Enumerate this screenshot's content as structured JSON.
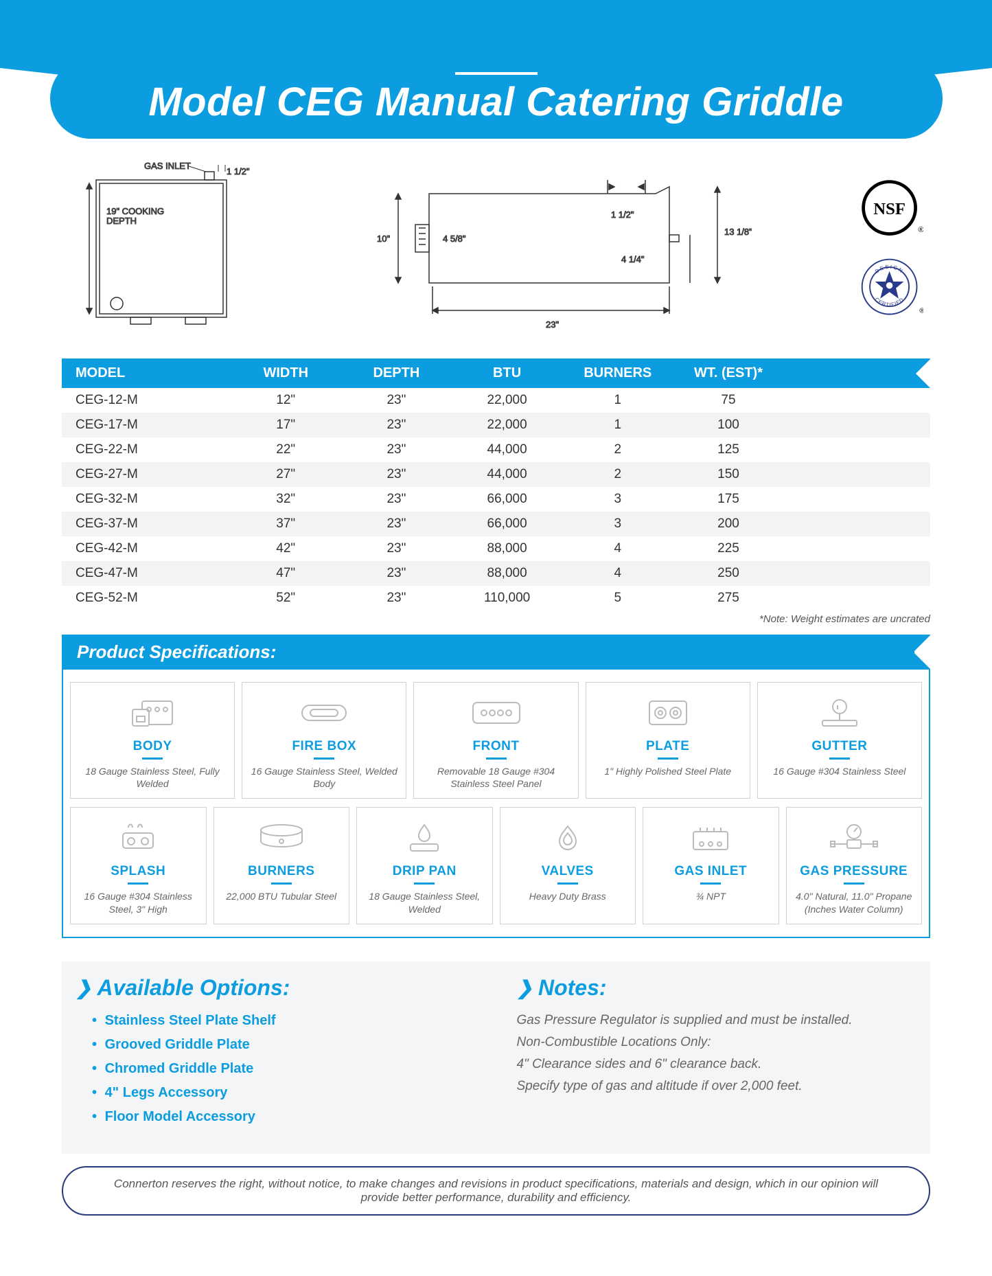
{
  "title": "Model CEG Manual Catering Griddle",
  "colors": {
    "accent": "#0c9de0",
    "dark": "#3a4270",
    "text": "#333333",
    "muted": "#666666"
  },
  "diagram": {
    "top": {
      "gas_inlet_label": "GAS INLET",
      "inlet_dim": "1 1/2\"",
      "cooking_depth": "19\" COOKING\nDEPTH"
    },
    "side": {
      "height": "10\"",
      "shelf": "4 5/8\"",
      "lip": "1 1/2\"",
      "back_h": "13 1/8\"",
      "back_lip": "4 1/4\"",
      "depth": "23\""
    }
  },
  "cert_labels": {
    "nsf": "NSF",
    "csa_top": "DESIGN",
    "csa_bottom": "CERTIFIED"
  },
  "table": {
    "headers": [
      "MODEL",
      "WIDTH",
      "DEPTH",
      "BTU",
      "BURNERS",
      "WT. (EST)*"
    ],
    "rows": [
      [
        "CEG-12-M",
        "12\"",
        "23\"",
        "22,000",
        "1",
        "75"
      ],
      [
        "CEG-17-M",
        "17\"",
        "23\"",
        "22,000",
        "1",
        "100"
      ],
      [
        "CEG-22-M",
        "22\"",
        "23\"",
        "44,000",
        "2",
        "125"
      ],
      [
        "CEG-27-M",
        "27\"",
        "23\"",
        "44,000",
        "2",
        "150"
      ],
      [
        "CEG-32-M",
        "32\"",
        "23\"",
        "66,000",
        "3",
        "175"
      ],
      [
        "CEG-37-M",
        "37\"",
        "23\"",
        "66,000",
        "3",
        "200"
      ],
      [
        "CEG-42-M",
        "42\"",
        "23\"",
        "88,000",
        "4",
        "225"
      ],
      [
        "CEG-47-M",
        "47\"",
        "23\"",
        "88,000",
        "4",
        "250"
      ],
      [
        "CEG-52-M",
        "52\"",
        "23\"",
        "110,000",
        "5",
        "275"
      ]
    ],
    "footnote": "*Note: Weight estimates are uncrated"
  },
  "specs_heading": "Product Specifications:",
  "specs_row1": [
    {
      "title": "BODY",
      "desc": "18 Gauge Stainless Steel, Fully Welded"
    },
    {
      "title": "FIRE BOX",
      "desc": "16 Gauge Stainless Steel, Welded Body"
    },
    {
      "title": "FRONT",
      "desc": "Removable 18 Gauge #304 Stainless Steel Panel"
    },
    {
      "title": "PLATE",
      "desc": "1\" Highly Polished Steel Plate"
    },
    {
      "title": "GUTTER",
      "desc": "16 Gauge #304 Stainless Steel"
    }
  ],
  "specs_row2": [
    {
      "title": "SPLASH",
      "desc": "16 Gauge #304 Stainless Steel, 3\" High"
    },
    {
      "title": "BURNERS",
      "desc": "22,000 BTU Tubular Steel"
    },
    {
      "title": "DRIP PAN",
      "desc": "18 Gauge Stainless Steel, Welded"
    },
    {
      "title": "VALVES",
      "desc": "Heavy Duty Brass"
    },
    {
      "title": "GAS INLET",
      "desc": "¾ NPT"
    },
    {
      "title": "GAS PRESSURE",
      "desc": "4.0\" Natural, 11.0\" Propane (Inches Water Column)"
    }
  ],
  "options": {
    "heading": "Available Options:",
    "items": [
      "Stainless Steel Plate Shelf",
      "Grooved Griddle Plate",
      "Chromed Griddle Plate",
      "4\" Legs Accessory",
      "Floor Model Accessory"
    ]
  },
  "notes": {
    "heading": "Notes:",
    "items": [
      "Gas Pressure Regulator is supplied and must be installed.",
      "Non-Combustible Locations Only:",
      "4\" Clearance sides and 6\" clearance back.",
      "Specify type of gas and altitude if over 2,000 feet."
    ]
  },
  "disclaimer": "Connerton reserves the right, without notice, to make changes and revisions in product specifications, materials and design, which in our opinion will provide better performance, durability and efficiency."
}
